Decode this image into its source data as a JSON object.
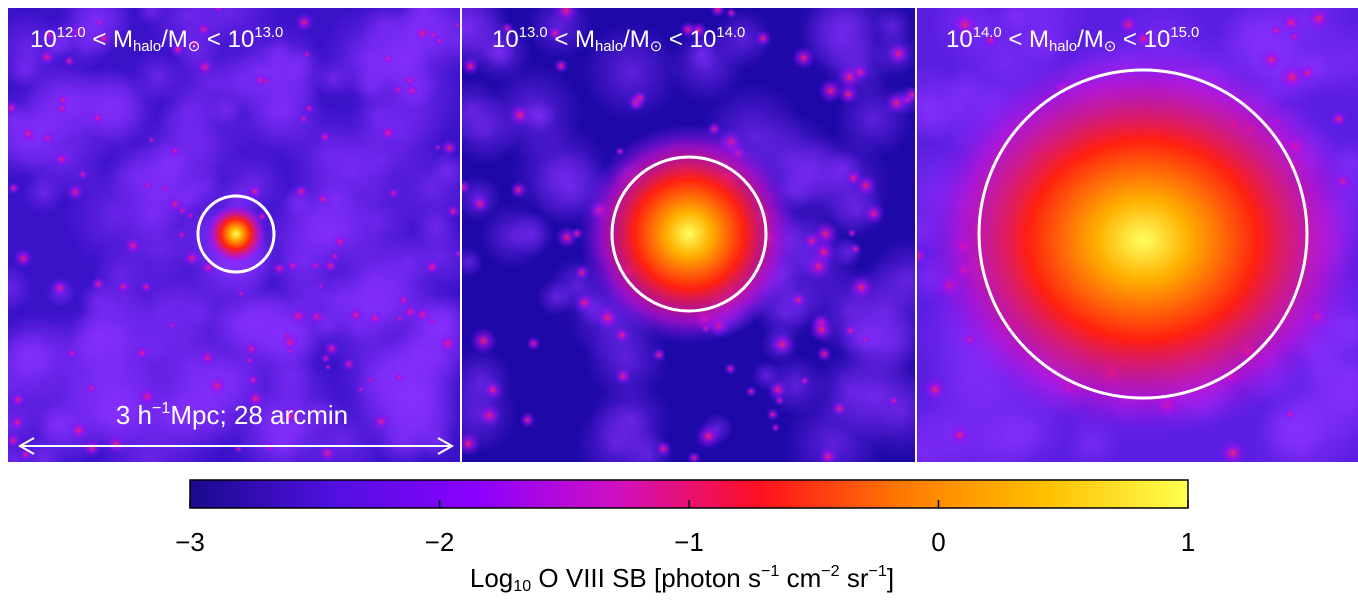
{
  "panels": [
    {
      "label": [
        {
          "text": "10"
        },
        {
          "sup": "12.0"
        },
        {
          "text": " < M"
        },
        {
          "sub": "halo"
        },
        {
          "text": "/M"
        },
        {
          "sub": "⊙"
        },
        {
          "text": " < 10"
        },
        {
          "sup": "13.0"
        }
      ]
    },
    {
      "label": [
        {
          "text": "10"
        },
        {
          "sup": "13.0"
        },
        {
          "text": " < M"
        },
        {
          "sub": "halo"
        },
        {
          "text": "/M"
        },
        {
          "sub": "⊙"
        },
        {
          "text": " < 10"
        },
        {
          "sup": "14.0"
        }
      ]
    },
    {
      "label": [
        {
          "text": "10"
        },
        {
          "sup": "14.0"
        },
        {
          "text": " < M"
        },
        {
          "sub": "halo"
        },
        {
          "text": "/M"
        },
        {
          "sub": "⊙"
        },
        {
          "text": " < 10"
        },
        {
          "sup": "15.0"
        }
      ]
    }
  ],
  "scale_bar": {
    "label": [
      {
        "text": "3 h"
      },
      {
        "sup": "−1"
      },
      {
        "text": "Mpc; 28 arcmin"
      }
    ]
  },
  "chart_data": {
    "type": "colorbar",
    "xlim": [
      -3,
      1
    ],
    "xticks": [
      {
        "value": -3,
        "label": "−3"
      },
      {
        "value": -2,
        "label": "−2"
      },
      {
        "value": -1,
        "label": "−1"
      },
      0,
      1
    ],
    "xlabel": [
      {
        "text": "Log"
      },
      {
        "sub": "10"
      },
      {
        "text": " O VIII SB [photon s"
      },
      {
        "sup": "−1"
      },
      {
        "text": " cm"
      },
      {
        "sup": "−2"
      },
      {
        "text": " sr"
      },
      {
        "sup": "−1"
      },
      {
        "text": "]"
      }
    ],
    "colors": [
      "#1a0a8c",
      "#5010e0",
      "#8a00ff",
      "#d010c0",
      "#ff1020",
      "#ff7a00",
      "#ffc000",
      "#ffff50"
    ]
  }
}
